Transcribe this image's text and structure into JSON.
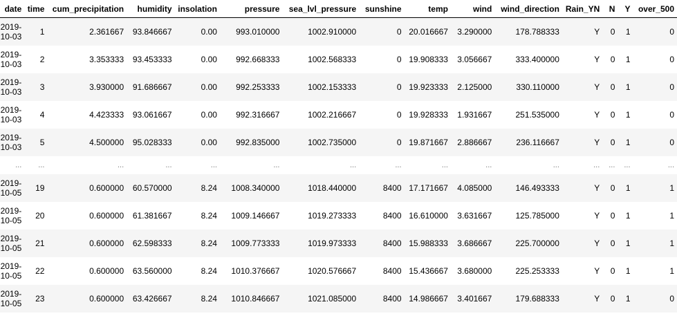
{
  "table": {
    "columns": [
      "date",
      "time",
      "cum_precipitation",
      "humidity",
      "insolation",
      "pressure",
      "sea_lvl_pressure",
      "sunshine",
      "temp",
      "wind",
      "wind_direction",
      "Rain_YN",
      "N",
      "Y",
      "over_500"
    ],
    "rows": [
      {
        "date_line1": "2019-",
        "date_line2": "10-03",
        "cells": [
          "1",
          "2.361667",
          "93.846667",
          "0.00",
          "993.010000",
          "1002.910000",
          "0",
          "20.016667",
          "3.290000",
          "178.788333",
          "Y",
          "0",
          "1",
          "0"
        ]
      },
      {
        "date_line1": "2019-",
        "date_line2": "10-03",
        "cells": [
          "2",
          "3.353333",
          "93.453333",
          "0.00",
          "992.668333",
          "1002.568333",
          "0",
          "19.908333",
          "3.056667",
          "333.400000",
          "Y",
          "0",
          "1",
          "0"
        ]
      },
      {
        "date_line1": "2019-",
        "date_line2": "10-03",
        "cells": [
          "3",
          "3.930000",
          "91.686667",
          "0.00",
          "992.253333",
          "1002.153333",
          "0",
          "19.923333",
          "2.125000",
          "330.110000",
          "Y",
          "0",
          "1",
          "0"
        ]
      },
      {
        "date_line1": "2019-",
        "date_line2": "10-03",
        "cells": [
          "4",
          "4.423333",
          "93.061667",
          "0.00",
          "992.316667",
          "1002.216667",
          "0",
          "19.928333",
          "1.931667",
          "251.535000",
          "Y",
          "0",
          "1",
          "0"
        ]
      },
      {
        "date_line1": "2019-",
        "date_line2": "10-03",
        "cells": [
          "5",
          "4.500000",
          "95.028333",
          "0.00",
          "992.835000",
          "1002.735000",
          "0",
          "19.871667",
          "2.886667",
          "236.116667",
          "Y",
          "0",
          "1",
          "0"
        ]
      },
      {
        "ellipsis": true,
        "cells": [
          "...",
          "...",
          "...",
          "...",
          "...",
          "...",
          "...",
          "...",
          "...",
          "...",
          "...",
          "...",
          "...",
          "...",
          "..."
        ]
      },
      {
        "date_line1": "2019-",
        "date_line2": "10-05",
        "cells": [
          "19",
          "0.600000",
          "60.570000",
          "8.24",
          "1008.340000",
          "1018.440000",
          "8400",
          "17.171667",
          "4.085000",
          "146.493333",
          "Y",
          "0",
          "1",
          "1"
        ]
      },
      {
        "date_line1": "2019-",
        "date_line2": "10-05",
        "cells": [
          "20",
          "0.600000",
          "61.381667",
          "8.24",
          "1009.146667",
          "1019.273333",
          "8400",
          "16.610000",
          "3.631667",
          "125.785000",
          "Y",
          "0",
          "1",
          "1"
        ]
      },
      {
        "date_line1": "2019-",
        "date_line2": "10-05",
        "cells": [
          "21",
          "0.600000",
          "62.598333",
          "8.24",
          "1009.773333",
          "1019.973333",
          "8400",
          "15.988333",
          "3.686667",
          "225.700000",
          "Y",
          "0",
          "1",
          "1"
        ]
      },
      {
        "date_line1": "2019-",
        "date_line2": "10-05",
        "cells": [
          "22",
          "0.600000",
          "63.560000",
          "8.24",
          "1010.376667",
          "1020.576667",
          "8400",
          "15.436667",
          "3.680000",
          "225.253333",
          "Y",
          "0",
          "1",
          "1"
        ]
      },
      {
        "date_line1": "2019-",
        "date_line2": "10-05",
        "cells": [
          "23",
          "0.600000",
          "63.426667",
          "8.24",
          "1010.846667",
          "1021.085000",
          "8400",
          "14.986667",
          "3.401667",
          "179.688333",
          "Y",
          "0",
          "1",
          "0"
        ]
      }
    ]
  },
  "colors": {
    "row_stripe": "#f5f5f5",
    "row_plain": "#ffffff",
    "header_border": "#000000"
  }
}
